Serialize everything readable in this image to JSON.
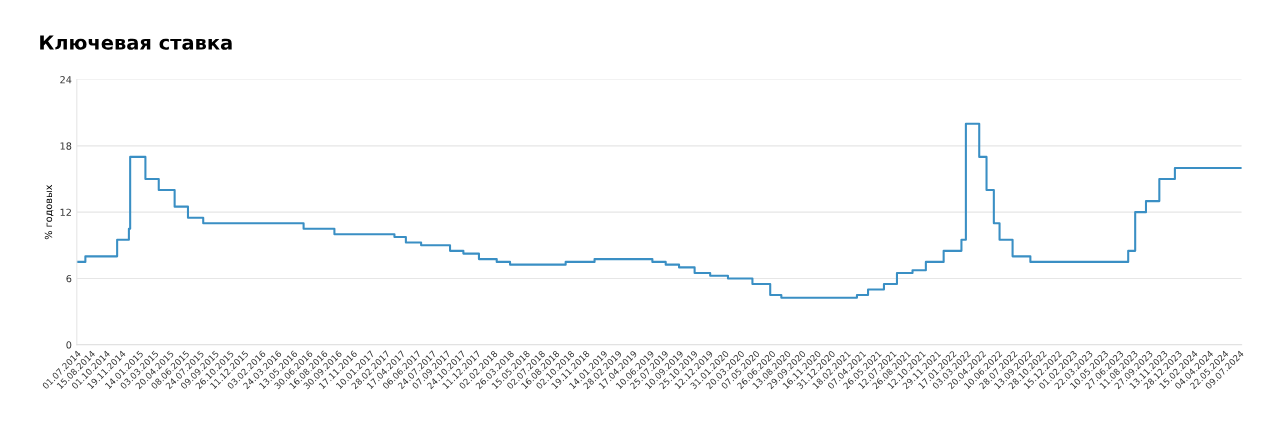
{
  "chart_data": {
    "type": "step",
    "title": "Ключевая ставка",
    "ylabel": "% годовых",
    "x": [
      "2014-07-01",
      "2014-07-28",
      "2014-11-05",
      "2014-12-12",
      "2014-12-16",
      "2015-02-02",
      "2015-03-16",
      "2015-05-05",
      "2015-06-16",
      "2015-08-03",
      "2016-06-14",
      "2016-09-19",
      "2017-03-27",
      "2017-05-02",
      "2017-06-19",
      "2017-09-18",
      "2017-10-30",
      "2017-12-18",
      "2018-02-12",
      "2018-03-26",
      "2018-09-17",
      "2018-12-17",
      "2019-06-17",
      "2019-07-29",
      "2019-09-09",
      "2019-10-28",
      "2019-12-16",
      "2020-02-10",
      "2020-04-27",
      "2020-06-22",
      "2020-07-27",
      "2021-03-22",
      "2021-04-26",
      "2021-06-15",
      "2021-07-26",
      "2021-09-13",
      "2021-10-25",
      "2021-12-20",
      "2022-02-14",
      "2022-02-28",
      "2022-04-11",
      "2022-05-04",
      "2022-05-27",
      "2022-06-14",
      "2022-07-25",
      "2022-09-19",
      "2023-07-24",
      "2023-08-15",
      "2023-09-18",
      "2023-10-30",
      "2023-12-18",
      "2024-07-15"
    ],
    "series": [
      {
        "color": "#3a8fc4",
        "values": [
          7.5,
          8,
          9.5,
          10.5,
          17,
          15,
          14,
          12.5,
          11.5,
          11,
          10.5,
          10,
          9.75,
          9.25,
          9,
          8.5,
          8.25,
          7.75,
          7.5,
          7.25,
          7.5,
          7.75,
          7.5,
          7.25,
          7,
          6.5,
          6.25,
          6,
          5.5,
          4.5,
          4.25,
          4.5,
          5,
          5.5,
          6.5,
          6.75,
          7.5,
          8.5,
          9.5,
          20,
          17,
          14,
          11,
          9.5,
          8,
          7.5,
          8.5,
          12,
          13,
          15,
          16,
          16
        ]
      }
    ],
    "ylim": [
      0,
      24
    ],
    "yticks": [
      0,
      6,
      12,
      18,
      24
    ],
    "xlim": [
      "2014-07-01",
      "2024-07-15"
    ],
    "xticks": [
      {
        "value": "2014-07-01",
        "label": "01.07.2014"
      },
      {
        "value": "2014-08-15",
        "label": "15.08.2014"
      },
      {
        "value": "2014-10-01",
        "label": "01.10.2014"
      },
      {
        "value": "2014-11-19",
        "label": "19.11.2014"
      },
      {
        "value": "2015-01-14",
        "label": "14.01.2015"
      },
      {
        "value": "2015-03-03",
        "label": "03.03.2015"
      },
      {
        "value": "2015-04-20",
        "label": "20.04.2015"
      },
      {
        "value": "2015-06-08",
        "label": "08.06.2015"
      },
      {
        "value": "2015-07-24",
        "label": "24.07.2015"
      },
      {
        "value": "2015-09-09",
        "label": "09.09.2015"
      },
      {
        "value": "2015-10-26",
        "label": "26.10.2015"
      },
      {
        "value": "2015-12-11",
        "label": "11.12.2015"
      },
      {
        "value": "2016-02-03",
        "label": "03.02.2016"
      },
      {
        "value": "2016-03-24",
        "label": "24.03.2016"
      },
      {
        "value": "2016-05-13",
        "label": "13.05.2016"
      },
      {
        "value": "2016-06-30",
        "label": "30.06.2016"
      },
      {
        "value": "2016-08-16",
        "label": "16.08.2016"
      },
      {
        "value": "2016-09-30",
        "label": "30.09.2016"
      },
      {
        "value": "2016-11-17",
        "label": "17.11.2016"
      },
      {
        "value": "2017-01-10",
        "label": "10.01.2017"
      },
      {
        "value": "2017-02-28",
        "label": "28.02.2017"
      },
      {
        "value": "2017-04-17",
        "label": "17.04.2017"
      },
      {
        "value": "2017-06-06",
        "label": "06.06.2017"
      },
      {
        "value": "2017-07-24",
        "label": "24.07.2017"
      },
      {
        "value": "2017-09-07",
        "label": "07.09.2017"
      },
      {
        "value": "2017-10-24",
        "label": "24.10.2017"
      },
      {
        "value": "2017-12-11",
        "label": "11.12.2017"
      },
      {
        "value": "2018-02-02",
        "label": "02.02.2018"
      },
      {
        "value": "2018-03-26",
        "label": "26.03.2018"
      },
      {
        "value": "2018-05-15",
        "label": "15.05.2018"
      },
      {
        "value": "2018-07-02",
        "label": "02.07.2018"
      },
      {
        "value": "2018-08-16",
        "label": "16.08.2018"
      },
      {
        "value": "2018-10-02",
        "label": "02.10.2018"
      },
      {
        "value": "2018-11-19",
        "label": "19.11.2018"
      },
      {
        "value": "2019-01-14",
        "label": "14.01.2019"
      },
      {
        "value": "2019-02-28",
        "label": "28.02.2019"
      },
      {
        "value": "2019-04-17",
        "label": "17.04.2019"
      },
      {
        "value": "2019-06-10",
        "label": "10.06.2019"
      },
      {
        "value": "2019-07-25",
        "label": "25.07.2019"
      },
      {
        "value": "2019-09-10",
        "label": "10.09.2019"
      },
      {
        "value": "2019-10-25",
        "label": "25.10.2019"
      },
      {
        "value": "2019-12-12",
        "label": "12.12.2019"
      },
      {
        "value": "2020-01-31",
        "label": "31.01.2020"
      },
      {
        "value": "2020-03-20",
        "label": "20.03.2020"
      },
      {
        "value": "2020-05-07",
        "label": "07.05.2020"
      },
      {
        "value": "2020-06-26",
        "label": "26.06.2020"
      },
      {
        "value": "2020-08-13",
        "label": "13.08.2020"
      },
      {
        "value": "2020-09-29",
        "label": "29.09.2020"
      },
      {
        "value": "2020-11-16",
        "label": "16.11.2020"
      },
      {
        "value": "2020-12-31",
        "label": "31.12.2020"
      },
      {
        "value": "2021-02-18",
        "label": "18.02.2021"
      },
      {
        "value": "2021-04-07",
        "label": "07.04.2021"
      },
      {
        "value": "2021-05-26",
        "label": "26.05.2021"
      },
      {
        "value": "2021-07-12",
        "label": "12.07.2021"
      },
      {
        "value": "2021-08-26",
        "label": "26.08.2021"
      },
      {
        "value": "2021-10-12",
        "label": "12.10.2021"
      },
      {
        "value": "2021-11-29",
        "label": "29.11.2021"
      },
      {
        "value": "2022-01-17",
        "label": "17.01.2022"
      },
      {
        "value": "2022-03-03",
        "label": "03.03.2022"
      },
      {
        "value": "2022-04-20",
        "label": "20.04.2022"
      },
      {
        "value": "2022-06-10",
        "label": "10.06.2022"
      },
      {
        "value": "2022-07-28",
        "label": "28.07.2022"
      },
      {
        "value": "2022-09-13",
        "label": "13.09.2022"
      },
      {
        "value": "2022-10-28",
        "label": "28.10.2022"
      },
      {
        "value": "2022-12-15",
        "label": "15.12.2022"
      },
      {
        "value": "2023-02-01",
        "label": "01.02.2023"
      },
      {
        "value": "2023-03-22",
        "label": "22.03.2023"
      },
      {
        "value": "2023-05-10",
        "label": "10.05.2023"
      },
      {
        "value": "2023-06-27",
        "label": "27.06.2023"
      },
      {
        "value": "2023-08-11",
        "label": "11.08.2023"
      },
      {
        "value": "2023-09-27",
        "label": "27.09.2023"
      },
      {
        "value": "2023-11-13",
        "label": "13.11.2023"
      },
      {
        "value": "2023-12-28",
        "label": "28.12.2023"
      },
      {
        "value": "2024-02-15",
        "label": "15.02.2024"
      },
      {
        "value": "2024-04-04",
        "label": "04.04.2024"
      },
      {
        "value": "2024-05-22",
        "label": "22.05.2024"
      },
      {
        "value": "2024-07-09",
        "label": "09.07.2024"
      }
    ],
    "grid": "y",
    "legend": false
  }
}
